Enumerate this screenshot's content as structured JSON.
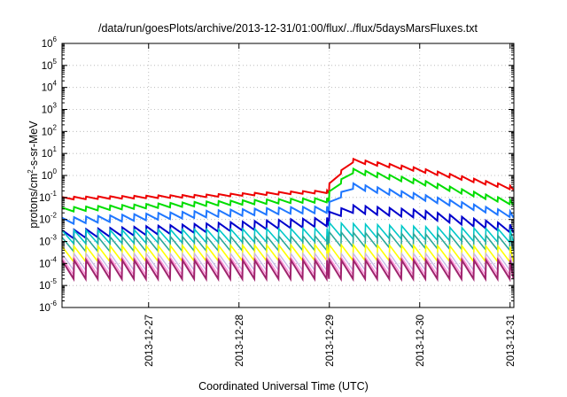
{
  "chart_data": {
    "type": "line",
    "title": "/data/run/goesPlots/archive/2013-12-31/01:00/flux/../flux/5daysMarsFluxes.txt",
    "xlabel": "Coordinated Universal Time (UTC)",
    "ylabel": {
      "prefix": "protons/cm",
      "sup": "2",
      "suffix": "-s-sr-MeV"
    },
    "xlim": [
      "2013-12-26 01:00",
      "2013-12-31 01:00"
    ],
    "ylim": [
      1e-06,
      1000000.0
    ],
    "yscale": "log",
    "grid": true,
    "x_ticks": [
      "2013-12-27",
      "2013-12-28",
      "2013-12-29",
      "2013-12-30",
      "2013-12-31"
    ],
    "y_ticks": [
      {
        "base": "10",
        "exp": "-6"
      },
      {
        "base": "10",
        "exp": "-5"
      },
      {
        "base": "10",
        "exp": "-4"
      },
      {
        "base": "10",
        "exp": "-3"
      },
      {
        "base": "10",
        "exp": "-2"
      },
      {
        "base": "10",
        "exp": "-1"
      },
      {
        "base": "10",
        "exp": "0"
      },
      {
        "base": "10",
        "exp": "1"
      },
      {
        "base": "10",
        "exp": "2"
      },
      {
        "base": "10",
        "exp": "3"
      },
      {
        "base": "10",
        "exp": "4"
      },
      {
        "base": "10",
        "exp": "5"
      },
      {
        "base": "10",
        "exp": "6"
      }
    ],
    "period_hours": 3.2,
    "event_time": "2013-12-29 00:00",
    "series": [
      {
        "color": "#ee0000",
        "width": 2.0,
        "pre": [
          [
            0,
            0.08
          ],
          [
            1.5,
            0.1
          ],
          [
            2.5,
            0.14
          ],
          [
            2.97,
            0.16
          ]
        ],
        "post": [
          [
            0,
            0.3
          ],
          [
            0.25,
            4.0
          ],
          [
            1.0,
            1.5
          ],
          [
            2.04,
            0.22
          ]
        ],
        "post_amp": 0.16,
        "pre_amp": 0.12
      },
      {
        "color": "#00dd00",
        "width": 2.0,
        "pre": [
          [
            0,
            0.022
          ],
          [
            1.5,
            0.04
          ],
          [
            2.5,
            0.055
          ],
          [
            2.97,
            0.06
          ]
        ],
        "post": [
          [
            0,
            0.12
          ],
          [
            0.25,
            1.3
          ],
          [
            1.0,
            0.4
          ],
          [
            2.04,
            0.045
          ]
        ],
        "post_amp": 0.2,
        "pre_amp": 0.2
      },
      {
        "color": "#1f77ff",
        "width": 2.0,
        "pre": [
          [
            0,
            0.006
          ],
          [
            1.5,
            0.012
          ],
          [
            2.5,
            0.018
          ],
          [
            2.97,
            0.02
          ]
        ],
        "post": [
          [
            0,
            0.035
          ],
          [
            0.25,
            0.25
          ],
          [
            1.0,
            0.08
          ],
          [
            2.04,
            0.012
          ]
        ],
        "post_amp": 0.25,
        "pre_amp": 0.3
      },
      {
        "color": "#0000cc",
        "width": 2.0,
        "pre": [
          [
            0,
            0.0013
          ],
          [
            1.5,
            0.0025
          ],
          [
            2.5,
            0.004
          ],
          [
            2.97,
            0.005
          ]
        ],
        "post": [
          [
            0,
            0.01
          ],
          [
            0.25,
            0.02
          ],
          [
            1.0,
            0.012
          ],
          [
            2.04,
            0.0025
          ]
        ],
        "post_amp": 0.35,
        "pre_amp": 0.4
      },
      {
        "color": "#00c8c8",
        "width": 1.6,
        "pre": [
          [
            0,
            0.0008
          ],
          [
            2.97,
            0.001
          ]
        ],
        "post": [
          [
            0,
            0.0018
          ],
          [
            1.0,
            0.0012
          ],
          [
            2.04,
            0.0009
          ]
        ],
        "post_amp": 0.6,
        "pre_amp": 0.6
      },
      {
        "color": "#2aa89a",
        "width": 1.6,
        "pre": [
          [
            0,
            0.00035
          ],
          [
            2.97,
            0.0004
          ]
        ],
        "post": [
          [
            0,
            0.0006
          ],
          [
            2.04,
            0.0004
          ]
        ],
        "post_amp": 0.65,
        "pre_amp": 0.65
      },
      {
        "color": "#ffff00",
        "width": 1.6,
        "pre": [
          [
            0,
            0.00012
          ],
          [
            2.97,
            0.00014
          ]
        ],
        "post": [
          [
            0,
            0.00014
          ],
          [
            2.04,
            0.00012
          ]
        ],
        "post_amp": 0.7,
        "pre_amp": 0.7
      },
      {
        "color": "#c7b8e6",
        "width": 1.4,
        "pre": [
          [
            0,
            5e-05
          ],
          [
            2.97,
            5e-05
          ]
        ],
        "post": [
          [
            0,
            5e-05
          ],
          [
            2.04,
            5e-05
          ]
        ],
        "post_amp": 0.75,
        "pre_amp": 0.75
      },
      {
        "color": "#ff8fd8",
        "width": 1.4,
        "pre": [
          [
            0,
            3e-05
          ],
          [
            2.97,
            3e-05
          ]
        ],
        "post": [
          [
            0,
            3e-05
          ],
          [
            2.04,
            3e-05
          ]
        ],
        "post_amp": 0.8,
        "pre_amp": 0.8
      },
      {
        "color": "#a0246e",
        "width": 2.0,
        "pre": [
          [
            0,
            2e-05
          ],
          [
            2.97,
            2e-05
          ]
        ],
        "post": [
          [
            0,
            2e-05
          ],
          [
            2.04,
            2e-05
          ]
        ],
        "post_amp": 0.85,
        "pre_amp": 0.85
      }
    ]
  }
}
